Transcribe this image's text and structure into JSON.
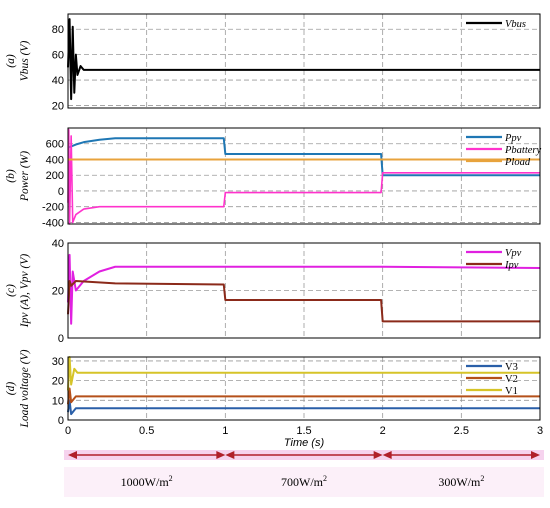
{
  "chart_data": [
    {
      "panel": "(a)",
      "type": "line",
      "ylabel": "Vbus (V)",
      "ylim": [
        18,
        92
      ],
      "yticks": [
        20,
        40,
        60,
        80
      ],
      "xlim": [
        0,
        3
      ],
      "series": [
        {
          "name": "Vbus",
          "color": "#000000",
          "points": [
            [
              0,
              50
            ],
            [
              0.01,
              88
            ],
            [
              0.02,
              25
            ],
            [
              0.03,
              82
            ],
            [
              0.04,
              30
            ],
            [
              0.05,
              60
            ],
            [
              0.06,
              44
            ],
            [
              0.08,
              51
            ],
            [
              0.1,
              48
            ],
            [
              0.2,
              48
            ],
            [
              1.0,
              48
            ],
            [
              2.0,
              48
            ],
            [
              3.0,
              48
            ]
          ]
        }
      ],
      "legend": "top-right"
    },
    {
      "panel": "(b)",
      "type": "line",
      "ylabel": "Power (W)",
      "ylim": [
        -420,
        800
      ],
      "yticks": [
        -400,
        -200,
        0,
        200,
        400,
        600
      ],
      "xlim": [
        0,
        3
      ],
      "series": [
        {
          "name": "Ppv",
          "color": "#1f77b4",
          "points": [
            [
              0,
              550
            ],
            [
              0.05,
              590
            ],
            [
              0.1,
              620
            ],
            [
              0.2,
              650
            ],
            [
              0.3,
              670
            ],
            [
              0.5,
              670
            ],
            [
              0.99,
              670
            ],
            [
              1.0,
              470
            ],
            [
              1.99,
              470
            ],
            [
              2.0,
              200
            ],
            [
              3.0,
              200
            ]
          ]
        },
        {
          "name": "Pbattery",
          "color": "#ff33cc",
          "points": [
            [
              0,
              -150
            ],
            [
              0.005,
              780
            ],
            [
              0.01,
              -420
            ],
            [
              0.02,
              700
            ],
            [
              0.03,
              -400
            ],
            [
              0.05,
              -300
            ],
            [
              0.1,
              -230
            ],
            [
              0.2,
              -200
            ],
            [
              0.99,
              -200
            ],
            [
              1.0,
              -20
            ],
            [
              1.99,
              -20
            ],
            [
              2.0,
              230
            ],
            [
              3.0,
              230
            ]
          ]
        },
        {
          "name": "Pload",
          "color": "#e8a33c",
          "points": [
            [
              0,
              400
            ],
            [
              3.0,
              400
            ]
          ]
        }
      ],
      "legend": "top-right"
    },
    {
      "panel": "(c)",
      "type": "line",
      "ylabel": "Ipv (A), Vpv (V)",
      "ylim": [
        0,
        40
      ],
      "yticks": [
        0,
        20,
        40
      ],
      "xlim": [
        0,
        3
      ],
      "series": [
        {
          "name": "Vpv",
          "color": "#e020e0",
          "points": [
            [
              0,
              15
            ],
            [
              0.01,
              35
            ],
            [
              0.02,
              6
            ],
            [
              0.03,
              28
            ],
            [
              0.05,
              20
            ],
            [
              0.1,
              24
            ],
            [
              0.2,
              28
            ],
            [
              0.3,
              30
            ],
            [
              0.6,
              30
            ],
            [
              1.0,
              30
            ],
            [
              2.0,
              30
            ],
            [
              3.0,
              29.5
            ]
          ]
        },
        {
          "name": "Ipv",
          "color": "#8b2a1a",
          "points": [
            [
              0,
              10
            ],
            [
              0.01,
              24
            ],
            [
              0.02,
              22
            ],
            [
              0.05,
              24
            ],
            [
              0.3,
              23
            ],
            [
              0.99,
              22.5
            ],
            [
              1.0,
              16
            ],
            [
              1.99,
              16
            ],
            [
              2.0,
              7
            ],
            [
              3.0,
              7
            ]
          ]
        }
      ],
      "legend": "top-right"
    },
    {
      "panel": "(d)",
      "type": "line",
      "ylabel": "Load voltage (V)",
      "ylim": [
        0,
        32
      ],
      "yticks": [
        0,
        10,
        20,
        30
      ],
      "xlim": [
        0,
        3
      ],
      "xticks": [
        0,
        0.5,
        1,
        1.5,
        2,
        2.5,
        3
      ],
      "xlabel": "Time (s)",
      "series": [
        {
          "name": "V3",
          "color": "#2a5fa8",
          "points": [
            [
              0,
              4
            ],
            [
              0.01,
              10
            ],
            [
              0.02,
              3
            ],
            [
              0.05,
              6
            ],
            [
              3.0,
              6
            ]
          ]
        },
        {
          "name": "V2",
          "color": "#b5501a",
          "points": [
            [
              0,
              8
            ],
            [
              0.01,
              16
            ],
            [
              0.02,
              9
            ],
            [
              0.05,
              12
            ],
            [
              3.0,
              12
            ]
          ]
        },
        {
          "name": "V1",
          "color": "#d6c428",
          "points": [
            [
              0,
              15
            ],
            [
              0.01,
              32
            ],
            [
              0.02,
              18
            ],
            [
              0.04,
              26
            ],
            [
              0.06,
              24
            ],
            [
              3.0,
              24
            ]
          ]
        }
      ],
      "legend": "top-right"
    }
  ],
  "xtick_labels": [
    "0",
    "0.5",
    "1",
    "1.5",
    "2",
    "2.5",
    "3"
  ],
  "xlabel": "Time (s)",
  "panel_letters": [
    "(a)",
    "(b)",
    "(c)",
    "(d)"
  ],
  "irradiance": {
    "arrow_color": "#b0202a",
    "band_color": "#f6d3ee",
    "segments": [
      {
        "from": 0,
        "to": 1,
        "label": "1000W/m",
        "sup": "2"
      },
      {
        "from": 1,
        "to": 2,
        "label": "700W/m",
        "sup": "2"
      },
      {
        "from": 2,
        "to": 3,
        "label": "300W/m",
        "sup": "2"
      }
    ]
  }
}
